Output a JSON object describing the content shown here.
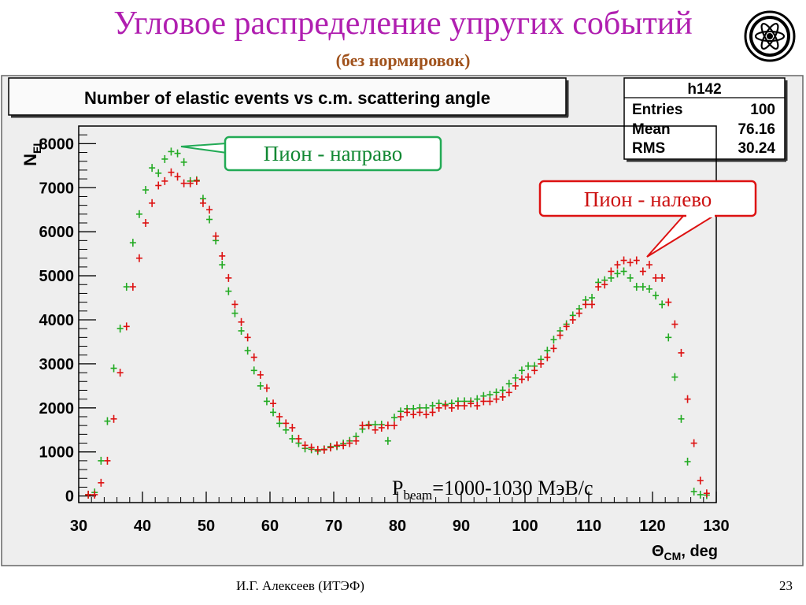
{
  "slide": {
    "title": "Угловое распределение упругих событий",
    "subtitle": "(без нормировок)",
    "footer_author": "И.Г. Алексеев (ИТЭФ)",
    "page_number": "23"
  },
  "annotations": {
    "pion_right": "Пион - направо",
    "pion_left": "Пион - налево",
    "beam_P": "P",
    "beam_sub": "beam",
    "beam_rest": "=1000-1030 МэВ/с"
  },
  "stats_box": {
    "name": "h142",
    "rows": [
      {
        "label": "Entries",
        "value": "100"
      },
      {
        "label": "Mean",
        "value": "76.16"
      },
      {
        "label": "RMS",
        "value": "30.24"
      }
    ]
  },
  "colors": {
    "title": "#b01fb0",
    "subtitle": "#a0521c",
    "series_green": "#22aa22",
    "series_red": "#dd1111",
    "box_green": "#22aa55",
    "box_red": "#dd1111",
    "plot_bg": "#eeeeee"
  },
  "chart_data": {
    "type": "scatter",
    "title": "Number of elastic events vs c.m. scattering angle",
    "xlabel_sym": "Θ",
    "xlabel_sub": "CM",
    "xlabel_rest": ", deg",
    "ylabel_sym": "N",
    "ylabel_sub": "EL",
    "xlim": [
      30,
      130
    ],
    "ylim": [
      -150,
      8400
    ],
    "x_ticks": [
      30,
      40,
      50,
      60,
      70,
      80,
      90,
      100,
      110,
      120,
      130
    ],
    "y_ticks": [
      0,
      1000,
      2000,
      3000,
      4000,
      5000,
      6000,
      7000,
      8000
    ],
    "grid": false,
    "series": [
      {
        "color": "green",
        "points": [
          [
            31.5,
            30
          ],
          [
            32.5,
            80
          ],
          [
            33.5,
            800
          ],
          [
            34.5,
            1700
          ],
          [
            35.5,
            2900
          ],
          [
            36.5,
            3800
          ],
          [
            37.5,
            4750
          ],
          [
            38.5,
            5750
          ],
          [
            39.5,
            6400
          ],
          [
            40.5,
            6950
          ],
          [
            41.5,
            7450
          ],
          [
            42.5,
            7330
          ],
          [
            43.5,
            7650
          ],
          [
            44.5,
            7820
          ],
          [
            45.5,
            7780
          ],
          [
            46.5,
            7580
          ],
          [
            47.5,
            7150
          ],
          [
            48.5,
            7170
          ],
          [
            49.5,
            6750
          ],
          [
            50.5,
            6280
          ],
          [
            51.5,
            5800
          ],
          [
            52.5,
            5250
          ],
          [
            53.5,
            4650
          ],
          [
            54.5,
            4150
          ],
          [
            55.5,
            3750
          ],
          [
            56.5,
            3300
          ],
          [
            57.5,
            2850
          ],
          [
            58.5,
            2500
          ],
          [
            59.5,
            2150
          ],
          [
            60.5,
            1900
          ],
          [
            61.5,
            1650
          ],
          [
            62.5,
            1500
          ],
          [
            63.5,
            1300
          ],
          [
            64.5,
            1200
          ],
          [
            65.5,
            1080
          ],
          [
            66.5,
            1060
          ],
          [
            67.5,
            1020
          ],
          [
            68.5,
            1060
          ],
          [
            69.5,
            1120
          ],
          [
            70.5,
            1130
          ],
          [
            71.5,
            1190
          ],
          [
            72.5,
            1250
          ],
          [
            73.5,
            1350
          ],
          [
            74.5,
            1520
          ],
          [
            75.5,
            1620
          ],
          [
            76.5,
            1620
          ],
          [
            77.5,
            1620
          ],
          [
            78.5,
            1250
          ],
          [
            79.5,
            1780
          ],
          [
            80.5,
            1920
          ],
          [
            81.5,
            1980
          ],
          [
            82.5,
            1980
          ],
          [
            83.5,
            2000
          ],
          [
            84.5,
            2000
          ],
          [
            85.5,
            2050
          ],
          [
            86.5,
            2100
          ],
          [
            87.5,
            2080
          ],
          [
            88.5,
            2100
          ],
          [
            89.5,
            2150
          ],
          [
            90.5,
            2150
          ],
          [
            91.5,
            2150
          ],
          [
            92.5,
            2200
          ],
          [
            93.5,
            2270
          ],
          [
            94.5,
            2300
          ],
          [
            95.5,
            2350
          ],
          [
            96.5,
            2400
          ],
          [
            97.5,
            2550
          ],
          [
            98.5,
            2680
          ],
          [
            99.5,
            2850
          ],
          [
            100.5,
            2950
          ],
          [
            101.5,
            2950
          ],
          [
            102.5,
            3100
          ],
          [
            103.5,
            3300
          ],
          [
            104.5,
            3550
          ],
          [
            105.5,
            3750
          ],
          [
            106.5,
            3900
          ],
          [
            107.5,
            4100
          ],
          [
            108.5,
            4250
          ],
          [
            109.5,
            4450
          ],
          [
            110.5,
            4500
          ],
          [
            111.5,
            4850
          ],
          [
            112.5,
            4900
          ],
          [
            113.5,
            4950
          ],
          [
            114.5,
            5050
          ],
          [
            115.5,
            5100
          ],
          [
            116.5,
            4950
          ],
          [
            117.5,
            4750
          ],
          [
            118.5,
            4750
          ],
          [
            119.5,
            4700
          ],
          [
            120.5,
            4550
          ],
          [
            121.5,
            4350
          ],
          [
            122.5,
            3600
          ],
          [
            123.5,
            2700
          ],
          [
            124.5,
            1750
          ],
          [
            125.5,
            780
          ],
          [
            126.5,
            100
          ],
          [
            127.5,
            30
          ],
          [
            128.5,
            20
          ]
        ]
      },
      {
        "color": "red",
        "points": [
          [
            31.5,
            30
          ],
          [
            32.5,
            30
          ],
          [
            33.5,
            300
          ],
          [
            34.5,
            800
          ],
          [
            35.5,
            1750
          ],
          [
            36.5,
            2800
          ],
          [
            37.5,
            3850
          ],
          [
            38.5,
            4750
          ],
          [
            39.5,
            5400
          ],
          [
            40.5,
            6200
          ],
          [
            41.5,
            6650
          ],
          [
            42.5,
            7050
          ],
          [
            43.5,
            7150
          ],
          [
            44.5,
            7350
          ],
          [
            45.5,
            7250
          ],
          [
            46.5,
            7100
          ],
          [
            47.5,
            7100
          ],
          [
            48.5,
            7150
          ],
          [
            49.5,
            6650
          ],
          [
            50.5,
            6500
          ],
          [
            51.5,
            5900
          ],
          [
            52.5,
            5450
          ],
          [
            53.5,
            4950
          ],
          [
            54.5,
            4350
          ],
          [
            55.5,
            3950
          ],
          [
            56.5,
            3600
          ],
          [
            57.5,
            3150
          ],
          [
            58.5,
            2750
          ],
          [
            59.5,
            2450
          ],
          [
            60.5,
            2100
          ],
          [
            61.5,
            1800
          ],
          [
            62.5,
            1650
          ],
          [
            63.5,
            1550
          ],
          [
            64.5,
            1300
          ],
          [
            65.5,
            1150
          ],
          [
            66.5,
            1100
          ],
          [
            67.5,
            1050
          ],
          [
            68.5,
            1050
          ],
          [
            69.5,
            1100
          ],
          [
            70.5,
            1150
          ],
          [
            71.5,
            1150
          ],
          [
            72.5,
            1200
          ],
          [
            73.5,
            1250
          ],
          [
            74.5,
            1600
          ],
          [
            75.5,
            1600
          ],
          [
            76.5,
            1500
          ],
          [
            77.5,
            1550
          ],
          [
            78.5,
            1600
          ],
          [
            79.5,
            1600
          ],
          [
            80.5,
            1800
          ],
          [
            81.5,
            1900
          ],
          [
            82.5,
            1850
          ],
          [
            83.5,
            1900
          ],
          [
            84.5,
            1850
          ],
          [
            85.5,
            1900
          ],
          [
            86.5,
            2000
          ],
          [
            87.5,
            2050
          ],
          [
            88.5,
            2000
          ],
          [
            89.5,
            2050
          ],
          [
            90.5,
            2050
          ],
          [
            91.5,
            2100
          ],
          [
            92.5,
            2050
          ],
          [
            93.5,
            2150
          ],
          [
            94.5,
            2150
          ],
          [
            95.5,
            2200
          ],
          [
            96.5,
            2250
          ],
          [
            97.5,
            2350
          ],
          [
            98.5,
            2500
          ],
          [
            99.5,
            2650
          ],
          [
            100.5,
            2700
          ],
          [
            101.5,
            2850
          ],
          [
            102.5,
            3000
          ],
          [
            103.5,
            3150
          ],
          [
            104.5,
            3350
          ],
          [
            105.5,
            3650
          ],
          [
            106.5,
            3850
          ],
          [
            107.5,
            4000
          ],
          [
            108.5,
            4150
          ],
          [
            109.5,
            4350
          ],
          [
            110.5,
            4350
          ],
          [
            111.5,
            4750
          ],
          [
            112.5,
            4800
          ],
          [
            113.5,
            5100
          ],
          [
            114.5,
            5250
          ],
          [
            115.5,
            5350
          ],
          [
            116.5,
            5300
          ],
          [
            117.5,
            5350
          ],
          [
            118.5,
            5100
          ],
          [
            119.5,
            5250
          ],
          [
            120.5,
            4950
          ],
          [
            121.5,
            4950
          ],
          [
            122.5,
            4400
          ],
          [
            123.5,
            3900
          ],
          [
            124.5,
            3250
          ],
          [
            125.5,
            2200
          ],
          [
            126.5,
            1200
          ],
          [
            127.5,
            350
          ],
          [
            128.5,
            60
          ]
        ]
      }
    ]
  }
}
